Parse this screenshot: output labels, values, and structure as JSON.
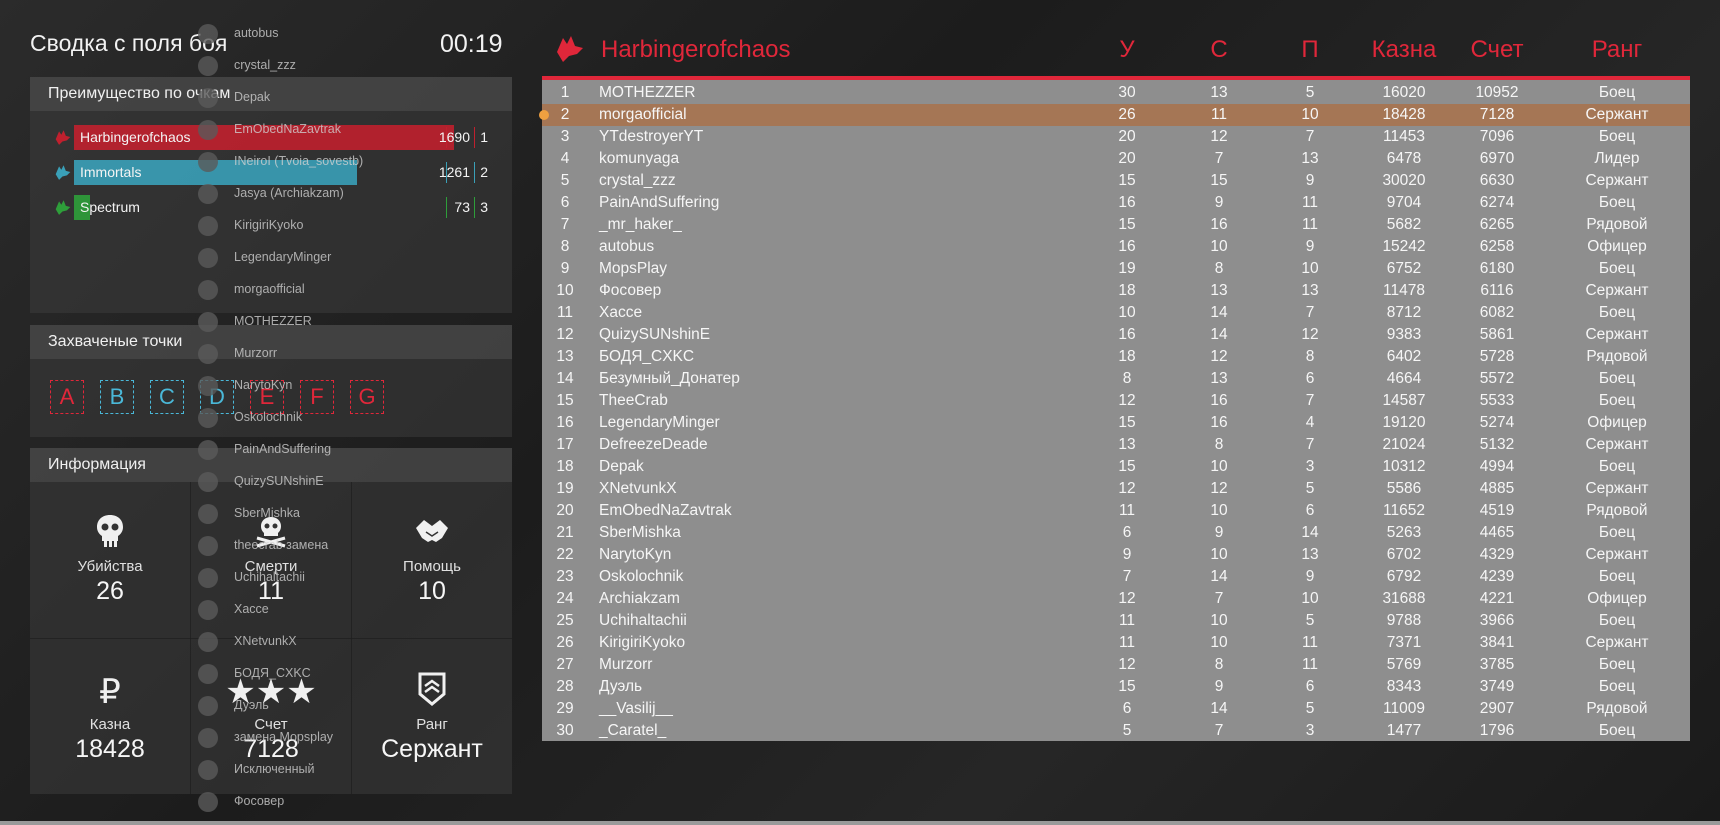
{
  "summary": {
    "title": "Сводка с поля боя",
    "timer": "00:19"
  },
  "advantage": {
    "heading": "Преимущество по очкам",
    "teams": [
      {
        "name": "Harbingerofchaos",
        "score": "1690",
        "place": "1",
        "color": "#c0202e",
        "fill": 1.0
      },
      {
        "name": "Immortals",
        "score": "1261",
        "place": "2",
        "color": "#3aa0b8",
        "fill": 0.746
      },
      {
        "name": "Spectrum",
        "score": "73",
        "place": "3",
        "color": "#2e9e3a",
        "fill": 0.043
      }
    ]
  },
  "points": {
    "heading": "Захваченые точки",
    "items": [
      {
        "letter": "A",
        "color": "#e0273a"
      },
      {
        "letter": "B",
        "color": "#4ab8d8"
      },
      {
        "letter": "C",
        "color": "#4ab8d8"
      },
      {
        "letter": "D",
        "color": "#4ab8d8"
      },
      {
        "letter": "E",
        "color": "#e0273a"
      },
      {
        "letter": "F",
        "color": "#e0273a"
      },
      {
        "letter": "G",
        "color": "#e0273a"
      }
    ]
  },
  "info": {
    "heading": "Информация",
    "kills": {
      "label": "Убийства",
      "value": "26",
      "icon": "skull-icon"
    },
    "deaths": {
      "label": "Смерти",
      "value": "11",
      "icon": "skull-crossbones-icon"
    },
    "assists": {
      "label": "Помощь",
      "value": "10",
      "icon": "handshake-icon"
    },
    "treasury": {
      "label": "Казна",
      "value": "18428",
      "icon": "ruble-icon"
    },
    "score": {
      "label": "Счет",
      "value": "7128",
      "icon": "stars-icon"
    },
    "rank": {
      "label": "Ранг",
      "value": "Сержант",
      "icon": "rank-badge-icon"
    }
  },
  "voice_list": [
    "autobus",
    "crystal_zzz",
    "Depak",
    "EmObedNaZavtrak",
    "INeiroI (Tvoia_sovestb)",
    "Jasya (Archiakzam)",
    "KirigiriKyoko",
    "LegendaryMinger",
    "morgaofficial",
    "MOTHEZZER",
    "Murzorr",
    "NarytoKyn",
    "Oskolochnik",
    "PainAndSuffering",
    "QuizySUNshinE",
    "SberMishka",
    "theecrab замена",
    "Uchihaltachii",
    "Хассе",
    "XNetvunkX",
    "БОДЯ_CXKC",
    "Дуэль",
    "замена Mopsplay",
    "Исключенный",
    "Фосовер"
  ],
  "board": {
    "team": "Harbingerofchaos",
    "columns": {
      "kills": "У",
      "deaths": "С",
      "assists": "П",
      "treasury": "Казна",
      "score": "Счет",
      "rank": "Ранг"
    },
    "rows": [
      [
        "1",
        "MOTHEZZER",
        "30",
        "13",
        "5",
        "16020",
        "10952",
        "Боец"
      ],
      [
        "2",
        "morgaofficial",
        "26",
        "11",
        "10",
        "18428",
        "7128",
        "Сержант"
      ],
      [
        "3",
        "YTdestroyerYT",
        "20",
        "12",
        "7",
        "11453",
        "7096",
        "Боец"
      ],
      [
        "4",
        "komunyaga",
        "20",
        "7",
        "13",
        "6478",
        "6970",
        "Лидер"
      ],
      [
        "5",
        "crystal_zzz",
        "15",
        "15",
        "9",
        "30020",
        "6630",
        "Сержант"
      ],
      [
        "6",
        "PainAndSuffering",
        "16",
        "9",
        "11",
        "9704",
        "6274",
        "Боец"
      ],
      [
        "7",
        "_mr_haker_",
        "15",
        "16",
        "11",
        "5682",
        "6265",
        "Рядовой"
      ],
      [
        "8",
        "autobus",
        "16",
        "10",
        "9",
        "15242",
        "6258",
        "Офицер"
      ],
      [
        "9",
        "MopsPlay",
        "19",
        "8",
        "10",
        "6752",
        "6180",
        "Боец"
      ],
      [
        "10",
        "Фосовер",
        "18",
        "13",
        "13",
        "11478",
        "6116",
        "Сержант"
      ],
      [
        "11",
        "Хассе",
        "10",
        "14",
        "7",
        "8712",
        "6082",
        "Боец"
      ],
      [
        "12",
        "QuizySUNshinE",
        "16",
        "14",
        "12",
        "9383",
        "5861",
        "Сержант"
      ],
      [
        "13",
        "БОДЯ_CXKC",
        "18",
        "12",
        "8",
        "6402",
        "5728",
        "Рядовой"
      ],
      [
        "14",
        "Безумный_Донатер",
        "8",
        "13",
        "6",
        "4664",
        "5572",
        "Боец"
      ],
      [
        "15",
        "TheeCrab",
        "12",
        "16",
        "7",
        "14587",
        "5533",
        "Боец"
      ],
      [
        "16",
        "LegendaryMinger",
        "15",
        "16",
        "4",
        "19120",
        "5274",
        "Офицер"
      ],
      [
        "17",
        "DefreezeDeade",
        "13",
        "8",
        "7",
        "21024",
        "5132",
        "Сержант"
      ],
      [
        "18",
        "Depak",
        "15",
        "10",
        "3",
        "10312",
        "4994",
        "Боец"
      ],
      [
        "19",
        "XNetvunkX",
        "12",
        "12",
        "5",
        "5586",
        "4885",
        "Сержант"
      ],
      [
        "20",
        "EmObedNaZavtrak",
        "11",
        "10",
        "6",
        "11652",
        "4519",
        "Рядовой"
      ],
      [
        "21",
        "SberMishka",
        "6",
        "9",
        "14",
        "5263",
        "4465",
        "Боец"
      ],
      [
        "22",
        "NarytoKyn",
        "9",
        "10",
        "13",
        "6702",
        "4329",
        "Сержант"
      ],
      [
        "23",
        "Oskolochnik",
        "7",
        "14",
        "9",
        "6792",
        "4239",
        "Боец"
      ],
      [
        "24",
        "Archiakzam",
        "12",
        "7",
        "10",
        "31688",
        "4221",
        "Офицер"
      ],
      [
        "25",
        "Uchihaltachii",
        "11",
        "10",
        "5",
        "9788",
        "3966",
        "Боец"
      ],
      [
        "26",
        "KirigiriKyoko",
        "11",
        "10",
        "11",
        "7371",
        "3841",
        "Сержант"
      ],
      [
        "27",
        "Murzorr",
        "12",
        "8",
        "11",
        "5769",
        "3785",
        "Боец"
      ],
      [
        "28",
        "Дуэль",
        "15",
        "9",
        "6",
        "8343",
        "3749",
        "Боец"
      ],
      [
        "29",
        "__Vasilij__",
        "6",
        "14",
        "5",
        "11009",
        "2907",
        "Рядовой"
      ],
      [
        "30",
        "_Caratel_",
        "5",
        "7",
        "3",
        "1477",
        "1796",
        "Боец"
      ]
    ],
    "highlight_row": 1
  }
}
